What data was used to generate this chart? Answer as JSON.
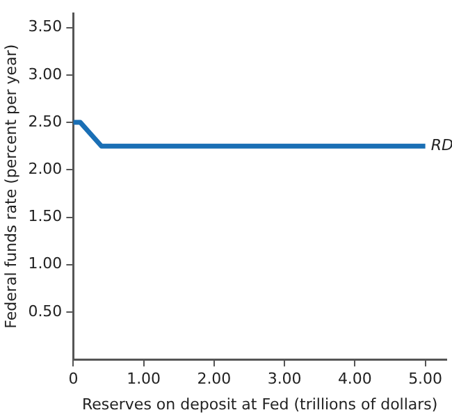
{
  "chart_data": {
    "type": "line",
    "xlabel": "Reserves on deposit at Fed (trillions of dollars)",
    "ylabel": "Federal funds rate (percent per year)",
    "x": [
      0,
      0.1,
      0.4,
      5.0
    ],
    "series": [
      {
        "name": "RD",
        "color": "#1a6fb5",
        "values": [
          2.5,
          2.5,
          2.25,
          2.25
        ]
      }
    ],
    "xlim": [
      0,
      5.3
    ],
    "xticks": [
      0,
      {
        "value": 1,
        "label": "1.00"
      },
      {
        "value": 2,
        "label": "2.00"
      },
      {
        "value": 3,
        "label": "3.00"
      },
      {
        "value": 4,
        "label": "4.00"
      },
      {
        "value": 5,
        "label": "5.00"
      }
    ],
    "ylim": [
      0,
      3.65
    ],
    "yticks": [
      {
        "value": 0.5,
        "label": "0.50"
      },
      {
        "value": 1,
        "label": "1.00"
      },
      {
        "value": 1.5,
        "label": "1.50"
      },
      {
        "value": 2,
        "label": "2.00"
      },
      {
        "value": 2.5,
        "label": "2.50"
      },
      {
        "value": 3,
        "label": "3.00"
      },
      {
        "value": 3.5,
        "label": "3.50"
      }
    ],
    "grid": false,
    "legend": false,
    "marker": "none",
    "line_style": "solid"
  }
}
